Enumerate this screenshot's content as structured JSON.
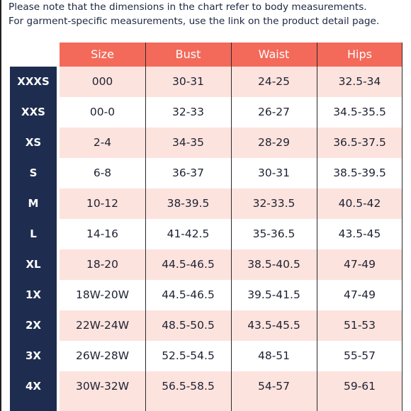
{
  "note": {
    "line1": "Please note that the dimensions in the chart refer to body measurements.",
    "line2": "For garment-specific measurements, use the link on the product detail page."
  },
  "headers": [
    "Size",
    "Bust",
    "Waist",
    "Hips"
  ],
  "rows": [
    {
      "label": "XXXS",
      "size": "000",
      "bust": "30-31",
      "waist": "24-25",
      "hips": "32.5-34"
    },
    {
      "label": "XXS",
      "size": "00-0",
      "bust": "32-33",
      "waist": "26-27",
      "hips": "34.5-35.5"
    },
    {
      "label": "XS",
      "size": "2-4",
      "bust": "34-35",
      "waist": "28-29",
      "hips": "36.5-37.5"
    },
    {
      "label": "S",
      "size": "6-8",
      "bust": "36-37",
      "waist": "30-31",
      "hips": "38.5-39.5"
    },
    {
      "label": "M",
      "size": "10-12",
      "bust": "38-39.5",
      "waist": "32-33.5",
      "hips": "40.5-42"
    },
    {
      "label": "L",
      "size": "14-16",
      "bust": "41-42.5",
      "waist": "35-36.5",
      "hips": "43.5-45"
    },
    {
      "label": "XL",
      "size": "18-20",
      "bust": "44.5-46.5",
      "waist": "38.5-40.5",
      "hips": "47-49"
    },
    {
      "label": "1X",
      "size": "18W-20W",
      "bust": "44.5-46.5",
      "waist": "39.5-41.5",
      "hips": "47-49"
    },
    {
      "label": "2X",
      "size": "22W-24W",
      "bust": "48.5-50.5",
      "waist": "43.5-45.5",
      "hips": "51-53"
    },
    {
      "label": "3X",
      "size": "26W-28W",
      "bust": "52.5-54.5",
      "waist": "48-51",
      "hips": "55-57"
    },
    {
      "label": "4X",
      "size": "30W-32W",
      "bust": "56.5-58.5",
      "waist": "54-57",
      "hips": "59-61"
    }
  ],
  "colors": {
    "header": "#f36a5a",
    "row_alt": "#fde3de",
    "size_column": "#1e2d4f"
  }
}
